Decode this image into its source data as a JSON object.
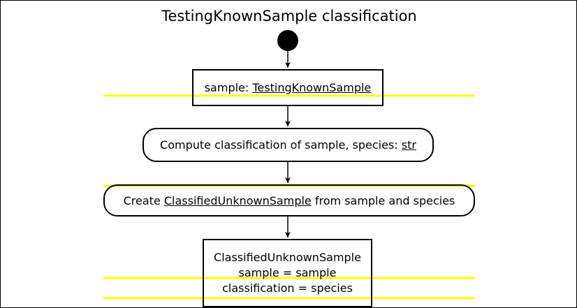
{
  "title": "TestingKnownSample classification",
  "colors": {
    "highlight": "#ffff00",
    "ink": "#000000"
  },
  "nodes": {
    "object_sample": {
      "prefix": "sample: ",
      "type": "TestingKnownSample"
    },
    "action_compute": {
      "prefix": "Compute classification of sample, species: ",
      "type": "str"
    },
    "action_create": {
      "prefix": "Create ",
      "type": "ClassifiedUnknownSample",
      "suffix": " from sample and species"
    },
    "object_result": {
      "line1": "ClassifiedUnknownSample",
      "line2": "sample = sample",
      "line3": "classification = species"
    }
  }
}
